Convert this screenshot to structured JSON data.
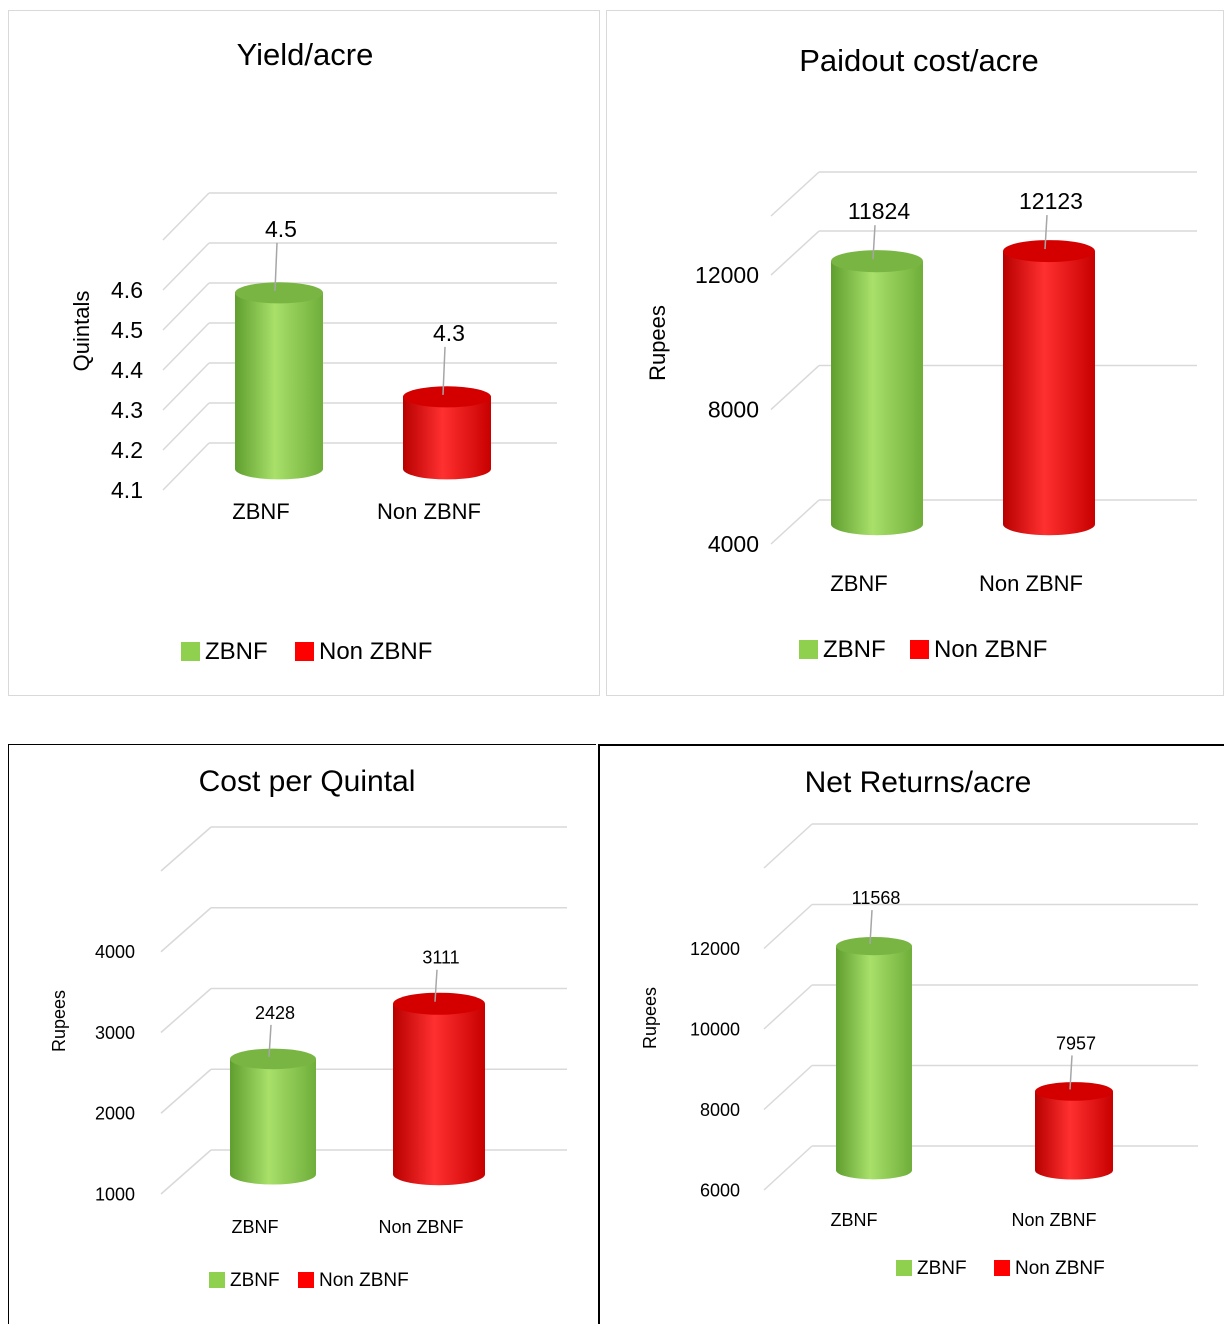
{
  "colors": {
    "zbnf": "#8fd14f",
    "non_zbnf": "#ff0000",
    "grid": "#d9d9d9"
  },
  "legend": {
    "zbnf": "ZBNF",
    "non_zbnf": "Non ZBNF"
  },
  "chart_data": [
    {
      "type": "bar",
      "title": "Yield/acre",
      "ylabel": "Quintals",
      "xlabel": "",
      "categories": [
        "ZBNF",
        "Non ZBNF"
      ],
      "values": [
        4.54,
        4.28
      ],
      "data_labels": [
        "4.5",
        "4.3"
      ],
      "y_ticks": [
        "4.1",
        "4.2",
        "4.3",
        "4.4",
        "4.5",
        "4.6"
      ],
      "ylim": [
        4.1,
        4.6
      ],
      "grid": true,
      "legend_position": "bottom",
      "legend": [
        "ZBNF",
        "Non ZBNF"
      ]
    },
    {
      "type": "bar",
      "title": "Paidout cost/acre",
      "ylabel": "Rupees",
      "xlabel": "",
      "categories": [
        "ZBNF",
        "Non ZBNF"
      ],
      "values": [
        11824,
        12123
      ],
      "data_labels": [
        "11824",
        "12123"
      ],
      "y_ticks": [
        "4000",
        "8000",
        "12000"
      ],
      "ylim": [
        4000,
        12000
      ],
      "grid": true,
      "legend_position": "bottom",
      "legend": [
        "ZBNF",
        "Non ZBNF"
      ]
    },
    {
      "type": "bar",
      "title": "Cost per Quintal",
      "ylabel": "Rupees",
      "xlabel": "",
      "categories": [
        "ZBNF",
        "Non ZBNF"
      ],
      "values": [
        2428,
        3111
      ],
      "data_labels": [
        "2428",
        "3111"
      ],
      "y_ticks": [
        "1000",
        "2000",
        "3000",
        "4000"
      ],
      "ylim": [
        1000,
        4000
      ],
      "grid": true,
      "legend_position": "bottom",
      "legend": [
        "ZBNF",
        "Non ZBNF"
      ]
    },
    {
      "type": "bar",
      "title": "Net Returns/acre",
      "ylabel": "Rupees",
      "xlabel": "",
      "categories": [
        "ZBNF",
        "Non ZBNF"
      ],
      "values": [
        11568,
        7957
      ],
      "data_labels": [
        "11568",
        "7957"
      ],
      "y_ticks": [
        "6000",
        "8000",
        "10000",
        "12000"
      ],
      "ylim": [
        6000,
        12000
      ],
      "grid": true,
      "legend_position": "bottom",
      "legend": [
        "ZBNF",
        "Non ZBNF"
      ]
    }
  ]
}
